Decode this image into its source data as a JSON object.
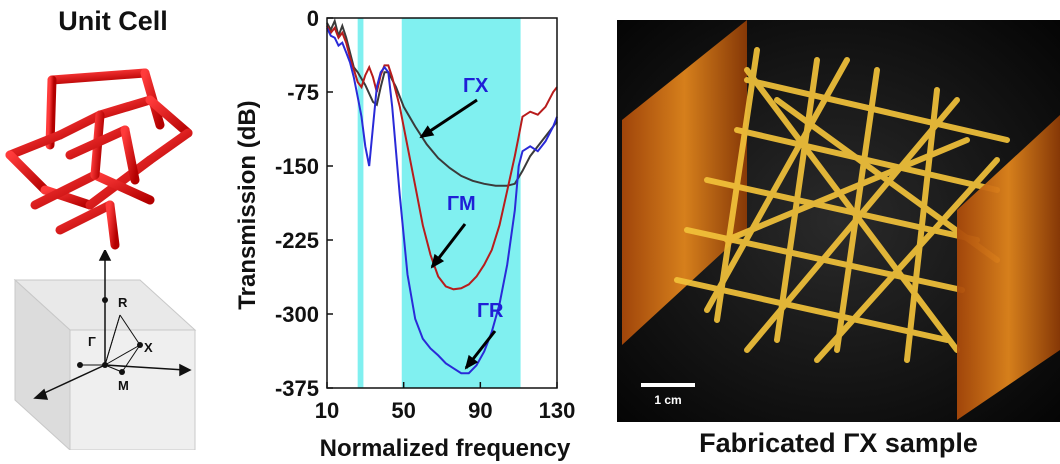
{
  "left_panel": {
    "title": "Unit Cell",
    "bz_labels": {
      "r": "R",
      "gamma": "Γ",
      "x": "X",
      "m": "M"
    }
  },
  "chart_data": {
    "type": "line",
    "xlabel": "Normalized frequency",
    "ylabel": "Transmission (dB)",
    "xlim": [
      10,
      130
    ],
    "ylim": [
      -375,
      0
    ],
    "xticks": [
      "10",
      "50",
      "90",
      "130"
    ],
    "yticks": [
      "0",
      "-75",
      "-150",
      "-225",
      "-300",
      "-375"
    ],
    "bandgaps": [
      [
        26,
        29
      ],
      [
        49,
        111
      ]
    ],
    "band_color": "#80f0f0",
    "series": [
      {
        "name": "ΓX",
        "color": "#3a3a3a",
        "points": [
          [
            10,
            -5
          ],
          [
            12,
            -12
          ],
          [
            14,
            -3
          ],
          [
            16,
            -18
          ],
          [
            18,
            -8
          ],
          [
            20,
            -20
          ],
          [
            22,
            -35
          ],
          [
            24,
            -50
          ],
          [
            26,
            -55
          ],
          [
            30,
            -68
          ],
          [
            34,
            -85
          ],
          [
            36,
            -88
          ],
          [
            38,
            -70
          ],
          [
            40,
            -55
          ],
          [
            42,
            -55
          ],
          [
            46,
            -70
          ],
          [
            50,
            -90
          ],
          [
            56,
            -110
          ],
          [
            62,
            -128
          ],
          [
            68,
            -142
          ],
          [
            74,
            -152
          ],
          [
            80,
            -160
          ],
          [
            86,
            -165
          ],
          [
            92,
            -168
          ],
          [
            98,
            -170
          ],
          [
            104,
            -170
          ],
          [
            108,
            -168
          ],
          [
            112,
            -155
          ],
          [
            116,
            -140
          ],
          [
            122,
            -125
          ],
          [
            126,
            -115
          ],
          [
            130,
            -105
          ]
        ]
      },
      {
        "name": "ΓM",
        "color": "#b81c1c",
        "points": [
          [
            10,
            -8
          ],
          [
            12,
            -15
          ],
          [
            14,
            -10
          ],
          [
            16,
            -20
          ],
          [
            18,
            -15
          ],
          [
            20,
            -25
          ],
          [
            22,
            -40
          ],
          [
            24,
            -52
          ],
          [
            26,
            -65
          ],
          [
            28,
            -70
          ],
          [
            30,
            -58
          ],
          [
            32,
            -50
          ],
          [
            34,
            -60
          ],
          [
            36,
            -75
          ],
          [
            38,
            -58
          ],
          [
            40,
            -48
          ],
          [
            42,
            -48
          ],
          [
            44,
            -60
          ],
          [
            48,
            -90
          ],
          [
            52,
            -130
          ],
          [
            56,
            -170
          ],
          [
            60,
            -210
          ],
          [
            64,
            -240
          ],
          [
            68,
            -262
          ],
          [
            72,
            -272
          ],
          [
            76,
            -275
          ],
          [
            80,
            -274
          ],
          [
            84,
            -270
          ],
          [
            88,
            -262
          ],
          [
            92,
            -250
          ],
          [
            96,
            -235
          ],
          [
            100,
            -210
          ],
          [
            104,
            -175
          ],
          [
            108,
            -140
          ],
          [
            110,
            -120
          ],
          [
            112,
            -100
          ],
          [
            116,
            -95
          ],
          [
            120,
            -98
          ],
          [
            124,
            -90
          ],
          [
            128,
            -75
          ],
          [
            130,
            -70
          ]
        ]
      },
      {
        "name": "ΓR",
        "color": "#2a2ad8",
        "points": [
          [
            10,
            -10
          ],
          [
            12,
            -18
          ],
          [
            14,
            -20
          ],
          [
            16,
            -28
          ],
          [
            18,
            -25
          ],
          [
            20,
            -35
          ],
          [
            22,
            -45
          ],
          [
            24,
            -60
          ],
          [
            26,
            -80
          ],
          [
            28,
            -100
          ],
          [
            30,
            -130
          ],
          [
            32,
            -150
          ],
          [
            34,
            -110
          ],
          [
            36,
            -70
          ],
          [
            38,
            -55
          ],
          [
            40,
            -50
          ],
          [
            42,
            -55
          ],
          [
            44,
            -90
          ],
          [
            48,
            -180
          ],
          [
            52,
            -260
          ],
          [
            56,
            -305
          ],
          [
            60,
            -325
          ],
          [
            64,
            -335
          ],
          [
            68,
            -342
          ],
          [
            72,
            -350
          ],
          [
            76,
            -355
          ],
          [
            80,
            -360
          ],
          [
            84,
            -360
          ],
          [
            88,
            -352
          ],
          [
            92,
            -338
          ],
          [
            96,
            -318
          ],
          [
            100,
            -290
          ],
          [
            104,
            -250
          ],
          [
            108,
            -195
          ],
          [
            110,
            -150
          ],
          [
            112,
            -135
          ],
          [
            116,
            -130
          ],
          [
            120,
            -135
          ],
          [
            124,
            -125
          ],
          [
            128,
            -110
          ],
          [
            130,
            -100
          ]
        ]
      }
    ],
    "annotations": [
      {
        "text": "ΓX",
        "color": "#1f1fd6"
      },
      {
        "text": "ΓM",
        "color": "#1f1fd6"
      },
      {
        "text": "ΓR",
        "color": "#1f1fd6"
      }
    ]
  },
  "photo": {
    "scale_bar": "1 cm",
    "caption": "Fabricated ΓX sample"
  }
}
